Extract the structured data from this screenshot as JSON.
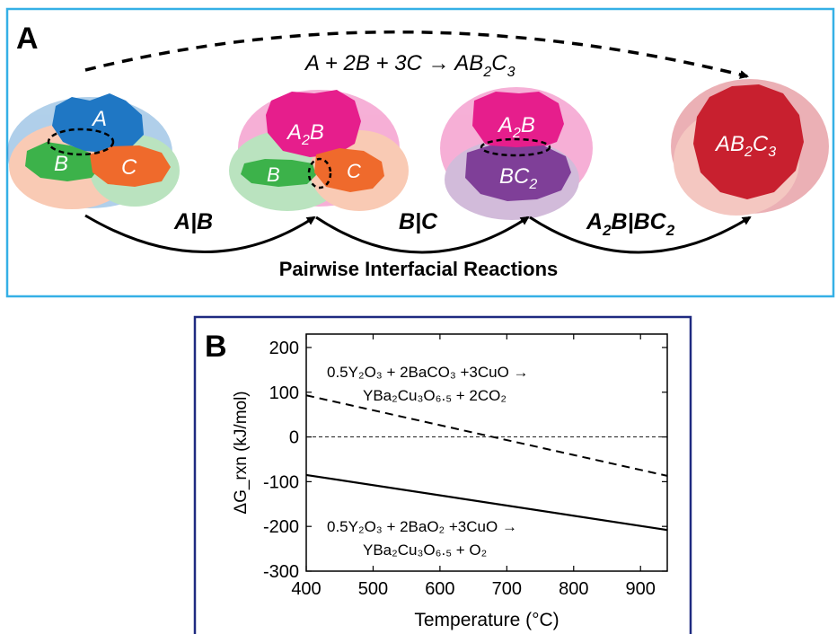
{
  "panel_a": {
    "label": "A",
    "overall_reaction": "A + 2B + 3C → AB₂C₃",
    "overall_reaction_parts": {
      "lhs": "A + 2B + 3C → AB",
      "sub1": "2",
      "mid": "C",
      "sub2": "3"
    },
    "stage1_labels": [
      "A",
      "B",
      "C"
    ],
    "stage2_labels": {
      "a2b_main": "A",
      "a2b_sub": "2",
      "a2b_tail": "B",
      "b": "B",
      "c": "C"
    },
    "stage3_labels": {
      "a2b_main": "A",
      "a2b_sub": "2",
      "a2b_tail": "B",
      "bc2_main": "BC",
      "bc2_sub": "2"
    },
    "product_label": {
      "main1": "AB",
      "sub1": "2",
      "main2": "C",
      "sub2": "3"
    },
    "interface_labels": {
      "ab": "A|B",
      "bc": "B|C",
      "a2b_bc2": {
        "p1": "A",
        "s1": "2",
        "p2": "B|BC",
        "s2": "2"
      }
    },
    "footer": "Pairwise Interfacial Reactions",
    "colors": {
      "border": "#35b0e6",
      "A": "#1f77c4",
      "B": "#3cb24a",
      "C": "#ef6a2c",
      "A2B": "#e61e8c",
      "BC2": "#7f3f98",
      "AB2C3": "#c8202f"
    }
  },
  "panel_b": {
    "label": "B",
    "border_color": "#1f2a80",
    "annotation_top": {
      "line1": "0.5Y₂O₃ + 2BaCO₃ +3CuO →",
      "line2": "YBa₂Cu₃O₆.₅ + 2CO₂"
    },
    "annotation_bottom": {
      "line1": "0.5Y₂O₃ + 2BaO₂ +3CuO →",
      "line2": "YBa₂Cu₃O₆.₅ + O₂"
    }
  },
  "chart_data": {
    "type": "line",
    "xlabel": "Temperature (°C)",
    "ylabel": "ΔG_rxn (kJ/mol)",
    "xlim": [
      400,
      940
    ],
    "ylim": [
      -300,
      230
    ],
    "xticks": [
      400,
      500,
      600,
      700,
      800,
      900
    ],
    "yticks": [
      200,
      100,
      0,
      -100,
      -200,
      -300
    ],
    "xtick_labels": [
      "400",
      "500",
      "600",
      "700",
      "800",
      "900"
    ],
    "ytick_labels": [
      "200",
      "100",
      "0",
      "-100",
      "-200",
      "-300"
    ],
    "grid": false,
    "zero_line": true,
    "series": [
      {
        "style": "dashed",
        "x": [
          400,
          940
        ],
        "y": [
          93,
          -87
        ]
      },
      {
        "style": "solid",
        "x": [
          400,
          940
        ],
        "y": [
          -85,
          -208
        ]
      }
    ]
  }
}
